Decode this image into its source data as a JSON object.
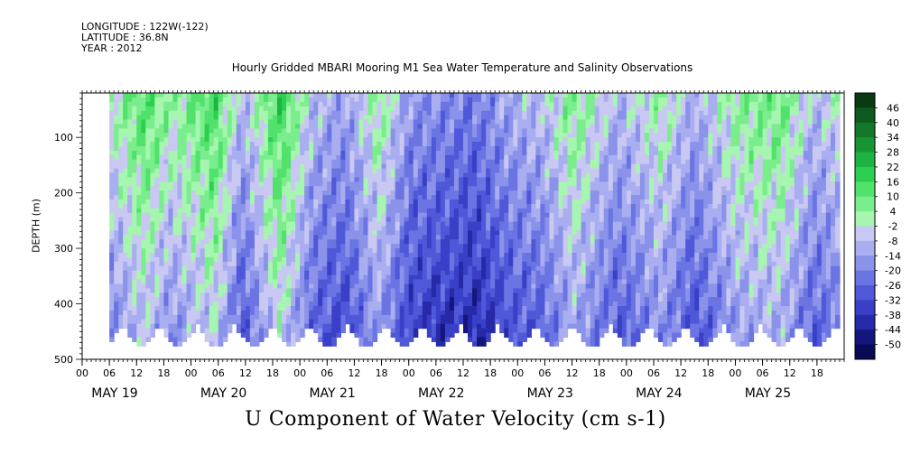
{
  "header": {
    "longitude": "LONGITUDE : 122W(-122)",
    "latitude": "LATITUDE : 36.8N",
    "year": "YEAR : 2012"
  },
  "chart_data": {
    "type": "heatmap",
    "title": "Hourly Gridded MBARI Mooring M1 Sea Water Temperature and Salinity Observations",
    "xlabel": "U Component of Water Velocity (cm s-1)",
    "ylabel": "DEPTH (m)",
    "x_hour_ticks": [
      "00",
      "06",
      "12",
      "18",
      "00",
      "06",
      "12",
      "18",
      "00",
      "06",
      "12",
      "18",
      "00",
      "06",
      "12",
      "18",
      "00",
      "06",
      "12",
      "18",
      "00",
      "06",
      "12",
      "18",
      "00",
      "06",
      "12",
      "18"
    ],
    "x_day_labels": [
      "MAY 19",
      "MAY 20",
      "MAY 21",
      "MAY 22",
      "MAY 23",
      "MAY 24",
      "MAY 25"
    ],
    "y_ticks": [
      100,
      200,
      300,
      400,
      500
    ],
    "ylim": [
      500,
      20
    ],
    "colorbar": {
      "levels": [
        "46",
        "40",
        "34",
        "28",
        "22",
        "16",
        "10",
        "4",
        "-2",
        "-8",
        "-14",
        "-20",
        "-26",
        "-32",
        "-38",
        "-44",
        "-50"
      ],
      "colors": [
        "#0a3a12",
        "#0e5a1e",
        "#14782a",
        "#179636",
        "#1db443",
        "#2bd050",
        "#50e26a",
        "#7aed8c",
        "#a6f5b0",
        "#c8c8f2",
        "#a9aef0",
        "#8a92ea",
        "#6a74e2",
        "#4f58d8",
        "#3a3fc8",
        "#262aa8",
        "#14167e",
        "#080a55"
      ]
    },
    "annotations": [
      "May 19 06h to May 25 22h",
      "depth 20 m to 480 m"
    ]
  },
  "bands": [
    {
      "d": 0,
      "v": -6
    },
    {
      "d": 0.25,
      "v": 2
    },
    {
      "d": 0.55,
      "v": 14
    },
    {
      "d": 0.8,
      "v": 4
    },
    {
      "d": 1.2,
      "v": 16
    },
    {
      "d": 1.45,
      "v": -8
    },
    {
      "d": 1.8,
      "v": 18
    },
    {
      "d": 2.1,
      "v": -6
    },
    {
      "d": 2.4,
      "v": -12
    },
    {
      "d": 2.7,
      "v": 6
    },
    {
      "d": 3.0,
      "v": -14
    },
    {
      "d": 3.6,
      "v": -20
    },
    {
      "d": 3.9,
      "v": -10
    },
    {
      "d": 4.2,
      "v": -6
    },
    {
      "d": 4.5,
      "v": 8
    },
    {
      "d": 4.9,
      "v": -8
    },
    {
      "d": 5.3,
      "v": 4
    },
    {
      "d": 5.6,
      "v": -10
    },
    {
      "d": 6.0,
      "v": 6
    },
    {
      "d": 6.4,
      "v": 10
    },
    {
      "d": 6.7,
      "v": -6
    },
    {
      "d": 7.0,
      "v": 2
    }
  ]
}
